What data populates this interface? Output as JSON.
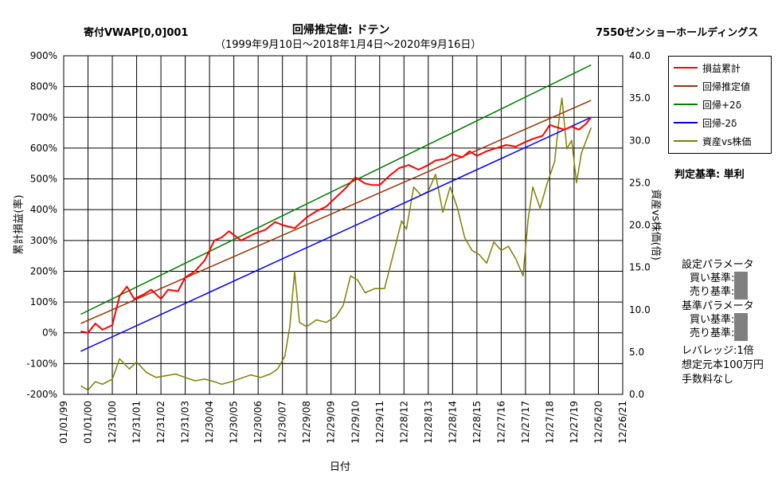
{
  "header": {
    "left_title": "寄付VWAP[0,0]001",
    "center_title": "回帰推定値: ドテン",
    "subtitle": "（1999年9月10日～2018年1月4日～2020年9月16日）",
    "right_title": "7550ゼンショーホールディングス"
  },
  "side_panel": {
    "judge": "判定基準: 単利",
    "settings_title": "設定パラメータ",
    "buy_label": "買い基準:",
    "sell_label": "売り基準:",
    "base_title": "基準パラメータ",
    "base_buy_label": "買い基準:",
    "base_sell_label": "売り基準:",
    "leverage": "レバレッジ:1倍",
    "capital": "想定元本100万円",
    "fees": "手数料なし"
  },
  "colors": {
    "pnl": "#ff0000",
    "regression": "#993300",
    "plus2": "#008000",
    "minus2": "#0000ff",
    "asset_ratio": "#808000"
  },
  "chart_data": {
    "type": "line",
    "xlabel": "日付",
    "ylabel_left": "累計損益(率)",
    "ylabel_right": "資産vs株価(倍)",
    "y_left_range": [
      -200,
      900
    ],
    "y_left_ticks": [
      "-200%",
      "-100%",
      "0%",
      "100%",
      "200%",
      "300%",
      "400%",
      "500%",
      "600%",
      "700%",
      "800%",
      "900%"
    ],
    "y_right_range": [
      0,
      40
    ],
    "y_right_ticks": [
      "0.0",
      "5.0",
      "10.0",
      "15.0",
      "20.0",
      "25.0",
      "30.0",
      "35.0",
      "40.0"
    ],
    "x_ticks": [
      "01/01/99",
      "01/01/00",
      "12/31/00",
      "12/31/01",
      "12/31/02",
      "12/31/03",
      "12/30/04",
      "12/30/05",
      "12/30/06",
      "12/30/07",
      "12/29/08",
      "12/29/09",
      "12/29/10",
      "12/29/11",
      "12/28/12",
      "12/28/13",
      "12/28/14",
      "12/28/15",
      "12/27/16",
      "12/27/17",
      "12/27/18",
      "12/27/19",
      "12/26/20",
      "12/26/21"
    ],
    "grid": true,
    "legend_position": "right",
    "series": [
      {
        "name": "損益累計",
        "axis": "left",
        "x": [
          1999.7,
          2000.0,
          2000.3,
          2000.6,
          2001.0,
          2001.3,
          2001.6,
          2001.9,
          2002.3,
          2002.6,
          2003.0,
          2003.3,
          2003.7,
          2004.0,
          2004.4,
          2004.8,
          2005.2,
          2005.5,
          2005.8,
          2006.3,
          2006.8,
          2007.3,
          2007.7,
          2008.0,
          2008.5,
          2009.0,
          2009.4,
          2009.8,
          2010.2,
          2010.6,
          2011.0,
          2011.4,
          2011.7,
          2012.0,
          2012.4,
          2012.8,
          2013.2,
          2013.6,
          2014.0,
          2014.3,
          2014.7,
          2015.0,
          2015.4,
          2015.7,
          2016.0,
          2016.4,
          2016.8,
          2017.2,
          2017.6,
          2018.0,
          2018.3,
          2018.7,
          2019.0,
          2019.4,
          2019.6,
          2019.9,
          2020.2,
          2020.5,
          2020.7
        ],
        "values": [
          5,
          0,
          30,
          10,
          25,
          120,
          150,
          110,
          125,
          140,
          110,
          140,
          135,
          180,
          200,
          235,
          300,
          310,
          330,
          300,
          320,
          335,
          360,
          350,
          340,
          375,
          395,
          410,
          440,
          470,
          505,
          485,
          480,
          480,
          510,
          535,
          545,
          530,
          545,
          560,
          565,
          580,
          570,
          590,
          575,
          590,
          600,
          610,
          605,
          620,
          630,
          640,
          675,
          665,
          660,
          670,
          660,
          680,
          700
        ]
      },
      {
        "name": "回帰推定値",
        "axis": "left",
        "x": [
          1999.7,
          2020.7
        ],
        "values": [
          30,
          755
        ]
      },
      {
        "name": "回帰+2δ",
        "axis": "left",
        "x": [
          1999.7,
          2020.7
        ],
        "values": [
          60,
          870
        ]
      },
      {
        "name": "回帰-2δ",
        "axis": "left",
        "x": [
          1999.7,
          2020.7
        ],
        "values": [
          -60,
          700
        ]
      },
      {
        "name": "資産vs株価",
        "axis": "right",
        "x": [
          1999.7,
          2000.0,
          2000.3,
          2000.6,
          2001.0,
          2001.3,
          2001.7,
          2002.0,
          2002.4,
          2002.8,
          2003.2,
          2003.6,
          2004.0,
          2004.4,
          2004.8,
          2005.2,
          2005.5,
          2005.9,
          2006.3,
          2006.7,
          2007.1,
          2007.5,
          2007.8,
          2008.1,
          2008.3,
          2008.5,
          2008.7,
          2009.0,
          2009.4,
          2009.8,
          2010.2,
          2010.5,
          2010.8,
          2011.1,
          2011.4,
          2011.8,
          2012.2,
          2012.6,
          2012.9,
          2013.1,
          2013.4,
          2013.7,
          2014.0,
          2014.3,
          2014.6,
          2014.9,
          2015.2,
          2015.5,
          2015.8,
          2016.1,
          2016.4,
          2016.7,
          2017.0,
          2017.3,
          2017.6,
          2017.9,
          2018.1,
          2018.3,
          2018.6,
          2018.9,
          2019.2,
          2019.4,
          2019.5,
          2019.7,
          2019.9,
          2020.1,
          2020.3,
          2020.5,
          2020.7
        ],
        "values": [
          1.0,
          0.5,
          1.5,
          1.2,
          1.8,
          4.2,
          3.0,
          3.8,
          2.6,
          2.0,
          2.2,
          2.4,
          2.0,
          1.6,
          1.8,
          1.5,
          1.2,
          1.5,
          1.9,
          2.3,
          2.0,
          2.4,
          3.0,
          4.5,
          8.0,
          14.5,
          8.5,
          8.0,
          8.8,
          8.5,
          9.2,
          10.5,
          14.0,
          13.5,
          12.0,
          12.5,
          12.5,
          17.0,
          20.5,
          19.5,
          24.5,
          23.5,
          24.0,
          26.0,
          21.5,
          24.5,
          22.0,
          18.5,
          17.0,
          16.5,
          15.5,
          18.0,
          17.0,
          17.5,
          16.0,
          14.0,
          20.5,
          24.5,
          22.0,
          25.0,
          27.5,
          33.0,
          35.0,
          29.0,
          30.0,
          25.0,
          28.5,
          30.0,
          31.5
        ]
      }
    ]
  }
}
